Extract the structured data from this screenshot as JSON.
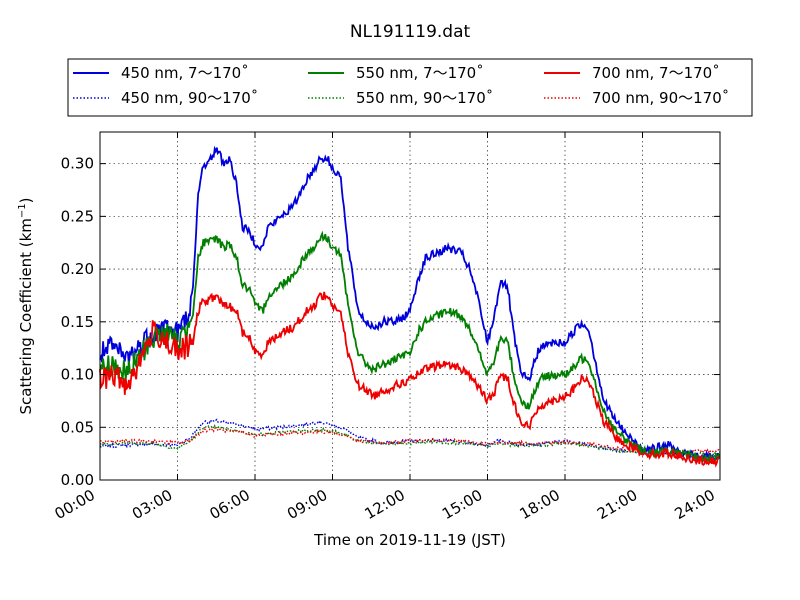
{
  "chart_data": {
    "type": "line",
    "title": "NL191119.dat",
    "xlabel": "Time on 2019-11-19 (JST)",
    "ylabel": "Scattering Coefficient (km",
    "ylabel_sup": "−1",
    "ylabel_end": ")",
    "xlim": [
      0,
      24
    ],
    "ylim": [
      0,
      0.33
    ],
    "x_ticks": [
      0,
      3,
      6,
      9,
      12,
      15,
      18,
      21,
      24
    ],
    "x_tick_labels": [
      "00:00",
      "03:00",
      "06:00",
      "09:00",
      "12:00",
      "15:00",
      "18:00",
      "21:00",
      "24:00"
    ],
    "y_ticks": [
      0.0,
      0.05,
      0.1,
      0.15,
      0.2,
      0.25,
      0.3
    ],
    "y_tick_labels": [
      "0.00",
      "0.05",
      "0.10",
      "0.15",
      "0.20",
      "0.25",
      "0.30"
    ],
    "grid": true,
    "legend_position": "top, outside, 3 columns",
    "colors": {
      "blue": "#0000dd",
      "green": "#007f00",
      "red": "#ee0000"
    },
    "series": [
      {
        "name": "450 nm, 7～170˚",
        "color": "#0000dd",
        "style": "solid",
        "x": [
          0,
          0.5,
          1,
          1.5,
          2,
          2.5,
          3,
          3.3,
          3.6,
          3.8,
          4.0,
          4.2,
          4.5,
          4.8,
          5.0,
          5.3,
          5.5,
          5.8,
          6.0,
          6.3,
          6.5,
          6.8,
          7.0,
          7.5,
          8.0,
          8.3,
          8.5,
          8.8,
          9.0,
          9.3,
          9.6,
          10.0,
          10.3,
          10.6,
          11.0,
          11.5,
          12.0,
          12.3,
          12.6,
          13.0,
          13.5,
          14.0,
          14.3,
          14.6,
          15.0,
          15.3,
          15.5,
          15.8,
          16.0,
          16.3,
          16.6,
          17.0,
          17.5,
          18.0,
          18.3,
          18.6,
          18.9,
          19.2,
          19.5,
          20.0,
          20.5,
          21.0,
          21.5,
          22.0,
          22.5,
          23.0,
          23.5,
          24.0
        ],
        "y": [
          0.12,
          0.125,
          0.115,
          0.125,
          0.14,
          0.145,
          0.14,
          0.15,
          0.18,
          0.27,
          0.3,
          0.3,
          0.315,
          0.3,
          0.305,
          0.28,
          0.24,
          0.235,
          0.225,
          0.22,
          0.24,
          0.245,
          0.25,
          0.26,
          0.285,
          0.295,
          0.305,
          0.305,
          0.295,
          0.29,
          0.22,
          0.16,
          0.15,
          0.145,
          0.15,
          0.15,
          0.16,
          0.19,
          0.21,
          0.215,
          0.22,
          0.215,
          0.2,
          0.175,
          0.13,
          0.16,
          0.19,
          0.18,
          0.14,
          0.1,
          0.095,
          0.125,
          0.13,
          0.13,
          0.14,
          0.148,
          0.145,
          0.11,
          0.075,
          0.055,
          0.04,
          0.03,
          0.03,
          0.033,
          0.025,
          0.023,
          0.022,
          0.023
        ]
      },
      {
        "name": "550 nm, 7～170˚",
        "color": "#007f00",
        "style": "solid",
        "x": [
          0,
          0.5,
          1,
          1.5,
          2,
          2.5,
          3,
          3.3,
          3.6,
          3.8,
          4.0,
          4.2,
          4.5,
          4.8,
          5.0,
          5.3,
          5.5,
          5.8,
          6.0,
          6.3,
          6.5,
          6.8,
          7.0,
          7.5,
          8.0,
          8.3,
          8.5,
          8.8,
          9.0,
          9.3,
          9.6,
          10.0,
          10.3,
          10.6,
          11.0,
          11.5,
          12.0,
          12.3,
          12.6,
          13.0,
          13.5,
          14.0,
          14.3,
          14.6,
          15.0,
          15.3,
          15.5,
          15.8,
          16.0,
          16.3,
          16.6,
          17.0,
          17.5,
          18.0,
          18.3,
          18.6,
          18.9,
          19.2,
          19.5,
          20.0,
          20.5,
          21.0,
          21.5,
          22.0,
          22.5,
          23.0,
          23.5,
          24.0
        ],
        "y": [
          0.105,
          0.11,
          0.1,
          0.115,
          0.135,
          0.14,
          0.13,
          0.14,
          0.16,
          0.21,
          0.225,
          0.225,
          0.23,
          0.22,
          0.225,
          0.21,
          0.185,
          0.18,
          0.165,
          0.16,
          0.175,
          0.18,
          0.185,
          0.195,
          0.215,
          0.22,
          0.23,
          0.23,
          0.22,
          0.215,
          0.165,
          0.12,
          0.11,
          0.105,
          0.11,
          0.115,
          0.12,
          0.14,
          0.15,
          0.155,
          0.16,
          0.155,
          0.145,
          0.125,
          0.1,
          0.115,
          0.135,
          0.13,
          0.1,
          0.075,
          0.07,
          0.095,
          0.1,
          0.1,
          0.105,
          0.115,
          0.115,
          0.09,
          0.065,
          0.045,
          0.035,
          0.028,
          0.026,
          0.028,
          0.024,
          0.022,
          0.02,
          0.021
        ]
      },
      {
        "name": "700 nm, 7～170˚",
        "color": "#ee0000",
        "style": "solid",
        "x": [
          0,
          0.5,
          1,
          1.5,
          2,
          2.5,
          3,
          3.3,
          3.6,
          3.8,
          4.0,
          4.2,
          4.5,
          4.8,
          5.0,
          5.3,
          5.5,
          5.8,
          6.0,
          6.3,
          6.5,
          6.8,
          7.0,
          7.5,
          8.0,
          8.3,
          8.5,
          8.8,
          9.0,
          9.3,
          9.6,
          10.0,
          10.3,
          10.6,
          11.0,
          11.5,
          12.0,
          12.3,
          12.6,
          13.0,
          13.5,
          14.0,
          14.3,
          14.6,
          15.0,
          15.3,
          15.5,
          15.8,
          16.0,
          16.3,
          16.6,
          17.0,
          17.5,
          18.0,
          18.3,
          18.6,
          18.9,
          19.2,
          19.5,
          20.0,
          20.5,
          21.0,
          21.5,
          22.0,
          22.5,
          23.0,
          23.5,
          24.0
        ],
        "y": [
          0.095,
          0.1,
          0.09,
          0.11,
          0.14,
          0.135,
          0.12,
          0.125,
          0.13,
          0.16,
          0.17,
          0.17,
          0.175,
          0.165,
          0.165,
          0.16,
          0.14,
          0.135,
          0.12,
          0.12,
          0.13,
          0.135,
          0.14,
          0.145,
          0.16,
          0.165,
          0.175,
          0.175,
          0.165,
          0.16,
          0.12,
          0.09,
          0.085,
          0.08,
          0.085,
          0.09,
          0.095,
          0.1,
          0.105,
          0.108,
          0.11,
          0.105,
          0.1,
          0.09,
          0.075,
          0.085,
          0.1,
          0.095,
          0.075,
          0.055,
          0.05,
          0.07,
          0.075,
          0.08,
          0.085,
          0.095,
          0.095,
          0.075,
          0.055,
          0.04,
          0.032,
          0.026,
          0.024,
          0.026,
          0.022,
          0.02,
          0.017,
          0.018
        ]
      },
      {
        "name": "450 nm, 90～170˚",
        "color": "#0000dd",
        "style": "dotted",
        "x": [
          0,
          1,
          2,
          3,
          3.5,
          4.0,
          4.5,
          5.0,
          5.5,
          6.0,
          7.0,
          8.0,
          8.5,
          9.0,
          9.5,
          10.0,
          11.0,
          12.0,
          13.0,
          14.0,
          15.0,
          15.5,
          16.0,
          17.0,
          18.0,
          19.0,
          20.0,
          21.0,
          22.0,
          23.0,
          24.0
        ],
        "y": [
          0.032,
          0.033,
          0.034,
          0.033,
          0.04,
          0.055,
          0.056,
          0.054,
          0.052,
          0.048,
          0.05,
          0.053,
          0.055,
          0.052,
          0.048,
          0.04,
          0.035,
          0.037,
          0.038,
          0.036,
          0.033,
          0.038,
          0.034,
          0.034,
          0.037,
          0.033,
          0.028,
          0.026,
          0.025,
          0.023,
          0.022
        ]
      },
      {
        "name": "550 nm, 90～170˚",
        "color": "#007f00",
        "style": "dotted",
        "x": [
          0,
          1,
          2,
          3,
          3.5,
          4.0,
          4.5,
          5.0,
          5.5,
          6.0,
          7.0,
          8.0,
          8.5,
          9.0,
          9.5,
          10.0,
          11.0,
          12.0,
          13.0,
          14.0,
          15.0,
          15.5,
          16.0,
          17.0,
          18.0,
          19.0,
          20.0,
          21.0,
          22.0,
          23.0,
          24.0
        ],
        "y": [
          0.034,
          0.035,
          0.035,
          0.03,
          0.037,
          0.05,
          0.05,
          0.048,
          0.046,
          0.043,
          0.045,
          0.047,
          0.048,
          0.046,
          0.043,
          0.037,
          0.034,
          0.035,
          0.036,
          0.035,
          0.032,
          0.035,
          0.033,
          0.033,
          0.035,
          0.032,
          0.028,
          0.026,
          0.025,
          0.024,
          0.025
        ]
      },
      {
        "name": "700 nm, 90～170˚",
        "color": "#ee0000",
        "style": "dotted",
        "x": [
          0,
          1,
          2,
          3,
          3.5,
          4.0,
          4.5,
          5.0,
          5.5,
          6.0,
          7.0,
          8.0,
          8.5,
          9.0,
          9.5,
          10.0,
          11.0,
          12.0,
          13.0,
          14.0,
          15.0,
          15.5,
          16.0,
          17.0,
          18.0,
          19.0,
          20.0,
          21.0,
          22.0,
          23.0,
          24.0
        ],
        "y": [
          0.036,
          0.037,
          0.037,
          0.035,
          0.038,
          0.047,
          0.048,
          0.046,
          0.045,
          0.042,
          0.044,
          0.045,
          0.046,
          0.045,
          0.042,
          0.037,
          0.035,
          0.037,
          0.038,
          0.037,
          0.034,
          0.036,
          0.035,
          0.035,
          0.036,
          0.034,
          0.03,
          0.028,
          0.027,
          0.027,
          0.028
        ]
      }
    ]
  }
}
